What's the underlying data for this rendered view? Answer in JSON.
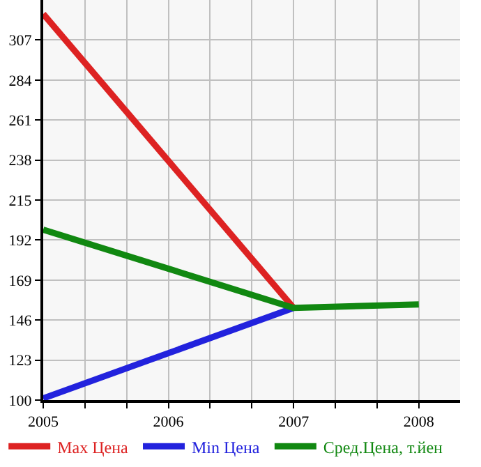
{
  "chart_data": {
    "type": "line",
    "x": [
      2005,
      2006,
      2007,
      2008
    ],
    "series": [
      {
        "name": "Max Цена",
        "color": "#dd2222",
        "values": [
          322,
          null,
          153,
          null
        ]
      },
      {
        "name": "Min Цена",
        "color": "#2222dd",
        "values": [
          101,
          null,
          153,
          null
        ]
      },
      {
        "name": "Сред.Цена, т.йен",
        "color": "#118811",
        "values": [
          198,
          null,
          153,
          155
        ]
      }
    ],
    "xlim": [
      2005,
      2008.33
    ],
    "xticks": [
      2005,
      {
        "value": 2005.333,
        "label": null
      },
      {
        "value": 2005.667,
        "label": null
      },
      2006,
      {
        "value": 2006.333,
        "label": null
      },
      {
        "value": 2006.667,
        "label": null
      },
      2007,
      {
        "value": 2007.333,
        "label": null
      },
      {
        "value": 2007.667,
        "label": null
      },
      2008
    ],
    "ylim": [
      100,
      330
    ],
    "yticks": [
      100,
      123,
      146,
      169,
      192,
      215,
      238,
      261,
      284,
      307
    ],
    "grid": true,
    "legend": "bottom",
    "marker": "none",
    "line_style": "solid"
  }
}
